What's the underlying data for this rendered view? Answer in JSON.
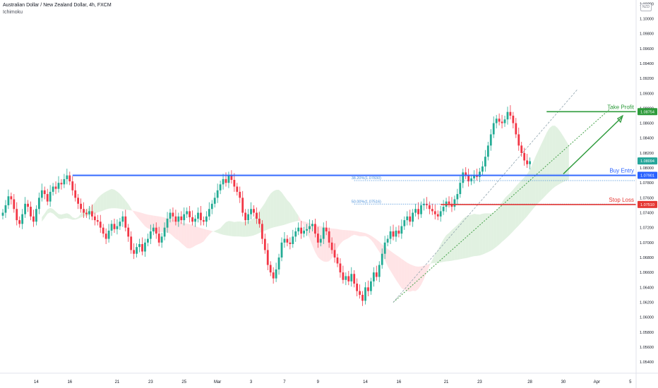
{
  "header": {
    "title": "Australian Dollar / New Zealand Dollar, 4h, FXCM",
    "indicator": "Ichimoku",
    "currency": "NZD"
  },
  "colors": {
    "bull": "#26a69a",
    "bear": "#ef5350",
    "bull_candle": "#22ab94",
    "bear_candle": "#f23645",
    "take_profit": "#2e9b3c",
    "stop_loss": "#e53935",
    "buy_entry": "#2962ff",
    "fib": "#4a90d9",
    "cloud_bull": "#c8e6c9",
    "cloud_bear": "#ffcdd2"
  },
  "chart_data": {
    "type": "candlestick",
    "symbol": "AUDNZD",
    "timeframe": "4h",
    "ylim": [
      1.0525,
      1.1025
    ],
    "y_ticks": [
      "1.10200",
      "1.10000",
      "1.09800",
      "1.09600",
      "1.09400",
      "1.09200",
      "1.09000",
      "1.08800",
      "1.08600",
      "1.08400",
      "1.08200",
      "1.08000",
      "1.07800",
      "1.07600",
      "1.07400",
      "1.07200",
      "1.07000",
      "1.06800",
      "1.06600",
      "1.06400",
      "1.06200",
      "1.06000",
      "1.05800",
      "1.05600",
      "1.05400"
    ],
    "x_ticks": [
      {
        "label": "14",
        "bar": 12
      },
      {
        "label": "16",
        "bar": 24
      },
      {
        "label": "21",
        "bar": 41
      },
      {
        "label": "23",
        "bar": 53
      },
      {
        "label": "25",
        "bar": 65
      },
      {
        "label": "Mar",
        "bar": 77
      },
      {
        "label": "3",
        "bar": 89
      },
      {
        "label": "7",
        "bar": 101
      },
      {
        "label": "9",
        "bar": 113
      },
      {
        "label": "14",
        "bar": 130
      },
      {
        "label": "16",
        "bar": 142
      },
      {
        "label": "21",
        "bar": 159
      },
      {
        "label": "23",
        "bar": 171
      },
      {
        "label": "28",
        "bar": 189
      },
      {
        "label": "30",
        "bar": 201
      },
      {
        "label": "Apr",
        "bar": 213
      },
      {
        "label": "5",
        "bar": 225
      }
    ],
    "closes": [
      1.074,
      1.075,
      1.0762,
      1.0758,
      1.0745,
      1.073,
      1.0725,
      1.0738,
      1.0752,
      1.0748,
      1.0735,
      1.0728,
      1.0745,
      1.076,
      1.077,
      1.0765,
      1.0755,
      1.0768,
      1.0775,
      1.0772,
      1.078,
      1.0778,
      1.0785,
      1.079,
      1.0782,
      1.077,
      1.076,
      1.0752,
      1.0745,
      1.074,
      1.0738,
      1.0742,
      1.0735,
      1.073,
      1.0728,
      1.072,
      1.0712,
      1.0705,
      1.0716,
      1.0725,
      1.0718,
      1.0722,
      1.0728,
      1.0735,
      1.072,
      1.0708,
      1.069,
      1.0685,
      1.0694,
      1.0698,
      1.0688,
      1.07,
      1.0705,
      1.0715,
      1.072,
      1.0712,
      1.07,
      1.0708,
      1.072,
      1.0732,
      1.074,
      1.0735,
      1.0728,
      1.0735,
      1.073,
      1.0738,
      1.0742,
      1.0734,
      1.0728,
      1.0732,
      1.074,
      1.073,
      1.0728,
      1.0735,
      1.0745,
      1.0752,
      1.076,
      1.077,
      1.0778,
      1.0785,
      1.078,
      1.079,
      1.0784,
      1.0775,
      1.0768,
      1.076,
      1.074,
      1.073,
      1.0738,
      1.0745,
      1.074,
      1.0732,
      1.0725,
      1.0705,
      1.069,
      1.067,
      1.066,
      1.0652,
      1.0664,
      1.068,
      1.07,
      1.0705,
      1.07,
      1.0698,
      1.0708,
      1.0715,
      1.072,
      1.0712,
      1.0716,
      1.0718,
      1.0722,
      1.0725,
      1.0712,
      1.07,
      1.0705,
      1.072,
      1.0715,
      1.07,
      1.069,
      1.068,
      1.0672,
      1.066,
      1.065,
      1.0655,
      1.0648,
      1.0658,
      1.0645,
      1.0635,
      1.063,
      1.0622,
      1.064,
      1.0635,
      1.0648,
      1.066,
      1.0654,
      1.067,
      1.0685,
      1.07,
      1.0705,
      1.0715,
      1.0708,
      1.0716,
      1.0712,
      1.0722,
      1.073,
      1.0735,
      1.0728,
      1.074,
      1.0745,
      1.0738,
      1.075,
      1.0752,
      1.075,
      1.0745,
      1.0742,
      1.0738,
      1.0735,
      1.0742,
      1.0748,
      1.0755,
      1.0752,
      1.0748,
      1.0758,
      1.0765,
      1.078,
      1.0794,
      1.079,
      1.0782,
      1.0786,
      1.079,
      1.0788,
      1.0795,
      1.0802,
      1.0815,
      1.083,
      1.0845,
      1.086,
      1.0866,
      1.0862,
      1.086,
      1.0865,
      1.0875,
      1.087,
      1.086,
      1.0845,
      1.083,
      1.082,
      1.081,
      1.0805,
      1.0809
    ],
    "levels": [
      {
        "name": "Take Profit",
        "price": 1.08754,
        "price_label": "1.08754",
        "from_bar": 195
      },
      {
        "name": "Buy Entry",
        "price": 1.07901,
        "price_label": "1.07901",
        "from_bar": 25
      },
      {
        "name": "Stop Loss",
        "price": 1.0751,
        "price_label": "1.07510",
        "from_bar": 157
      }
    ],
    "fib_levels": [
      {
        "label": "38.20%(1.07830)",
        "price": 1.0783,
        "from_bar": 126
      },
      {
        "label": "50.00%(1.07516)",
        "price": 1.07516,
        "from_bar": 126
      }
    ],
    "current_price": {
      "price": 1.08094,
      "price_label": "1.08094"
    },
    "annotations": [
      "Take Profit",
      "Buy Entry",
      "Stop Loss"
    ]
  }
}
